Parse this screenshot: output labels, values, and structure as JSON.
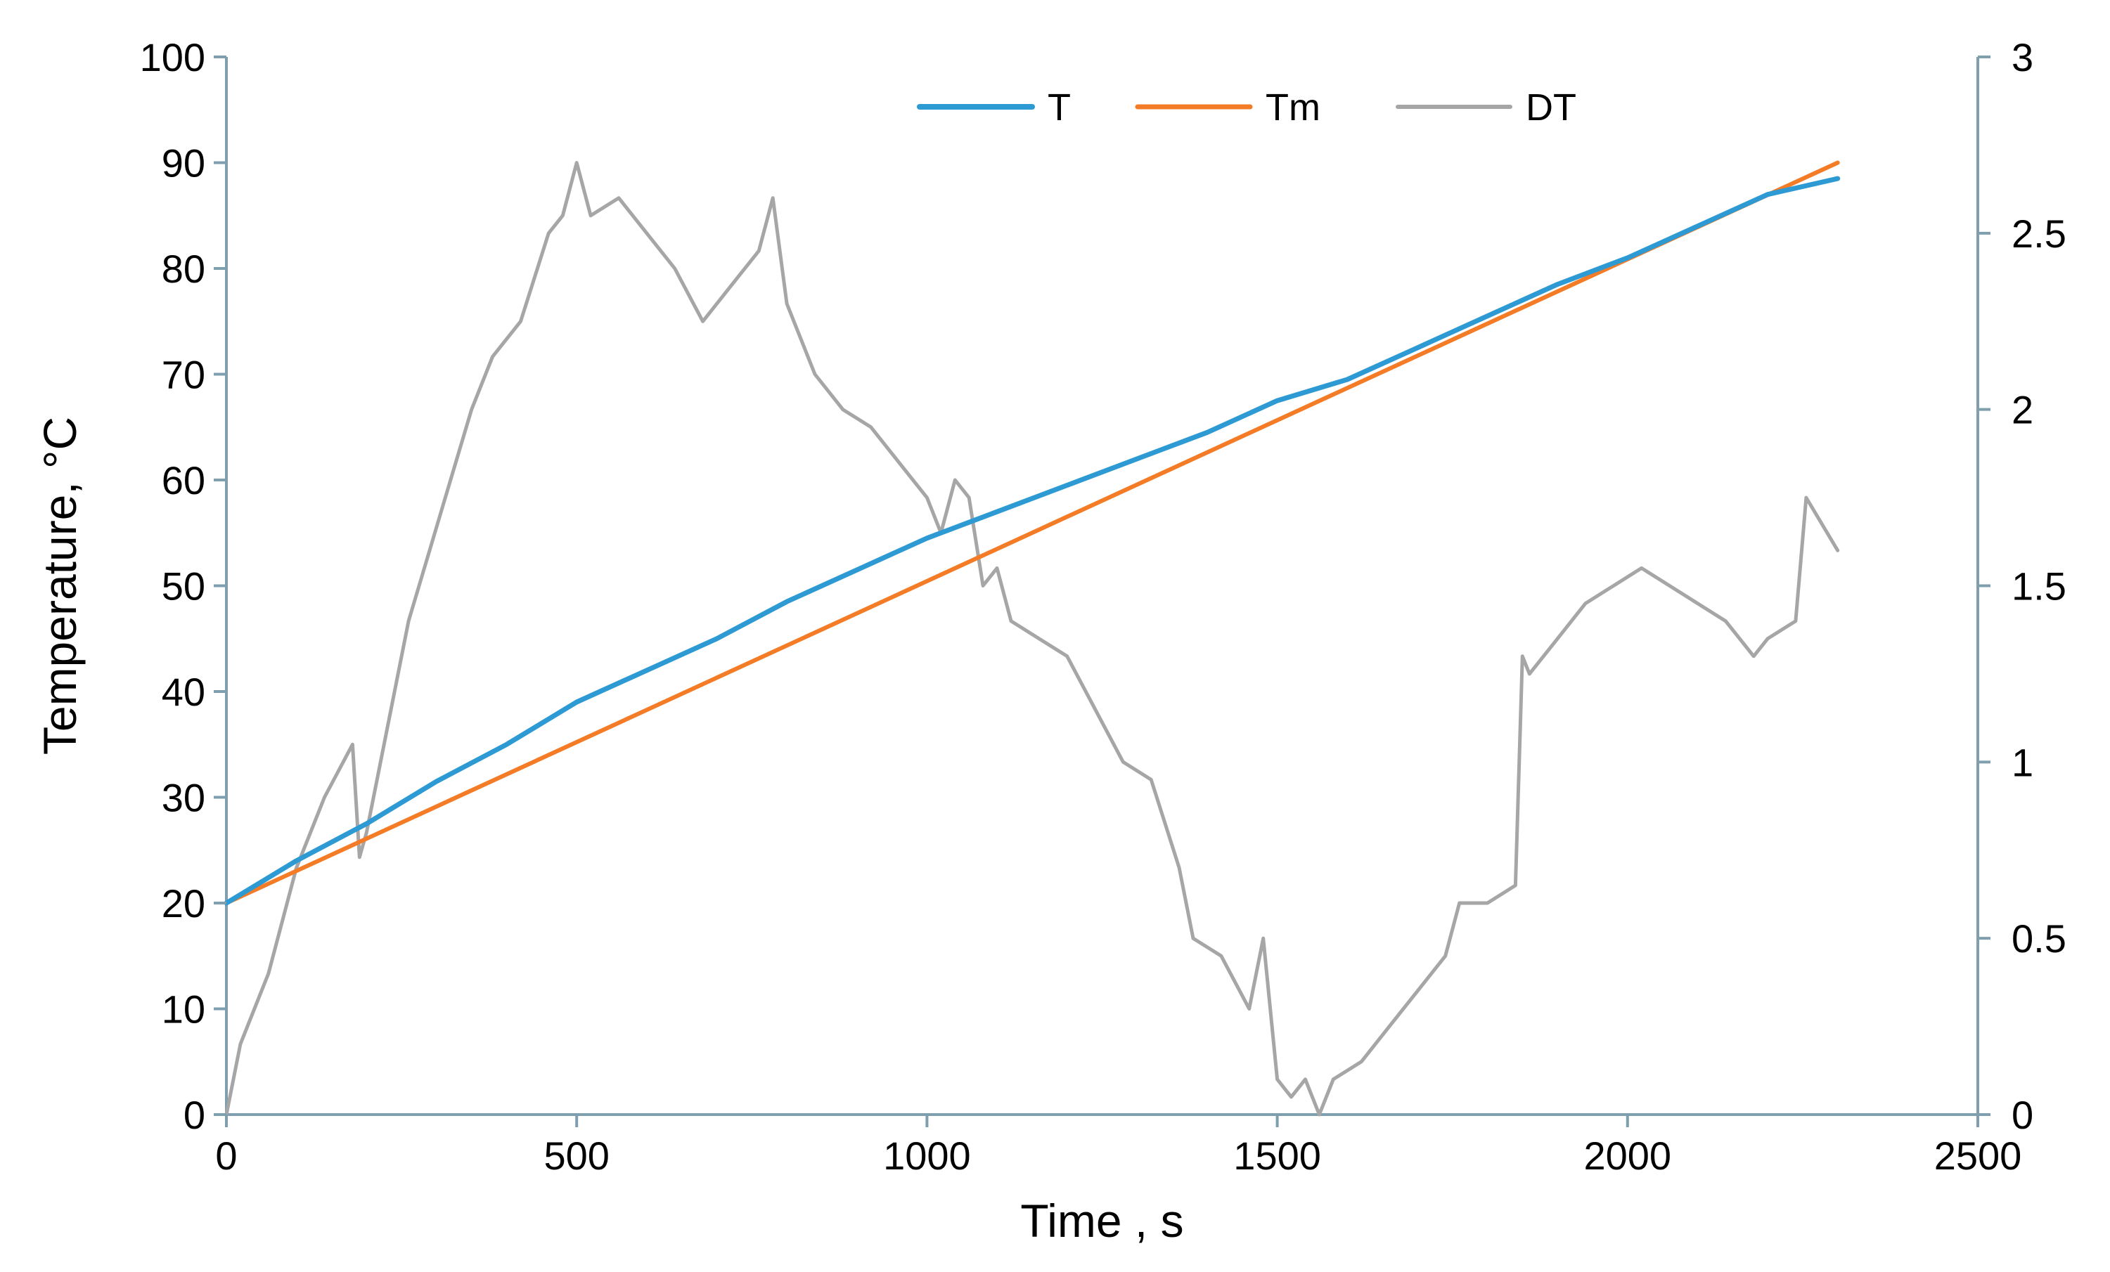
{
  "chart_data": {
    "type": "line",
    "xlabel": "Time , s",
    "ylabel": "Temperature, °C",
    "y2label": "",
    "xlim": [
      0,
      2500
    ],
    "ylim": [
      0,
      100
    ],
    "y2lim": [
      0,
      3
    ],
    "x_ticks": [
      "0",
      "500",
      "1000",
      "1500",
      "2000",
      "2500"
    ],
    "y_ticks": [
      "0",
      "10",
      "20",
      "30",
      "40",
      "50",
      "60",
      "70",
      "80",
      "90",
      "100"
    ],
    "y2_ticks": [
      "0",
      "0.5",
      "1",
      "1.5",
      "2",
      "2.5",
      "3"
    ],
    "grid": false,
    "legend_position": "top-center",
    "colors": {
      "T": "#2e9ad3",
      "Tm": "#f47c27",
      "DT": "#a6a6a6",
      "axis": "#7f9faf"
    },
    "series": [
      {
        "name": "T",
        "axis": "left",
        "x": [
          0,
          100,
          200,
          300,
          400,
          500,
          600,
          700,
          800,
          900,
          1000,
          1100,
          1200,
          1300,
          1400,
          1500,
          1600,
          1700,
          1800,
          1900,
          2000,
          2100,
          2200,
          2300
        ],
        "y": [
          20,
          24,
          27.5,
          31.5,
          35,
          39,
          42,
          45,
          48.5,
          51.5,
          54.5,
          57,
          59.5,
          62,
          64.5,
          67.5,
          69.5,
          72.5,
          75.5,
          78.5,
          81,
          84,
          87,
          88.5
        ]
      },
      {
        "name": "Tm",
        "axis": "left",
        "x": [
          0,
          2300
        ],
        "y": [
          20,
          90
        ]
      },
      {
        "name": "DT",
        "axis": "right",
        "x": [
          0,
          20,
          60,
          100,
          140,
          180,
          190,
          200,
          230,
          260,
          290,
          320,
          350,
          380,
          420,
          460,
          480,
          500,
          520,
          560,
          600,
          640,
          680,
          720,
          760,
          780,
          800,
          840,
          880,
          920,
          960,
          1000,
          1020,
          1040,
          1060,
          1080,
          1100,
          1120,
          1160,
          1200,
          1240,
          1280,
          1320,
          1360,
          1380,
          1420,
          1460,
          1480,
          1500,
          1520,
          1540,
          1560,
          1580,
          1620,
          1660,
          1700,
          1740,
          1760,
          1800,
          1840,
          1850,
          1860,
          1900,
          1940,
          1980,
          2020,
          2060,
          2100,
          2140,
          2180,
          2200,
          2240,
          2255,
          2300
        ],
        "y": [
          0,
          0.2,
          0.4,
          0.7,
          0.9,
          1.05,
          0.73,
          0.8,
          1.1,
          1.4,
          1.6,
          1.8,
          2.0,
          2.15,
          2.25,
          2.5,
          2.55,
          2.7,
          2.55,
          2.6,
          2.5,
          2.4,
          2.25,
          2.35,
          2.45,
          2.6,
          2.3,
          2.1,
          2.0,
          1.95,
          1.85,
          1.75,
          1.65,
          1.8,
          1.75,
          1.5,
          1.55,
          1.4,
          1.35,
          1.3,
          1.15,
          1.0,
          0.95,
          0.7,
          0.5,
          0.45,
          0.3,
          0.5,
          0.1,
          0.05,
          0.1,
          0.0,
          0.1,
          0.15,
          0.25,
          0.35,
          0.45,
          0.6,
          0.6,
          0.65,
          1.3,
          1.25,
          1.35,
          1.45,
          1.5,
          1.55,
          1.5,
          1.45,
          1.4,
          1.3,
          1.35,
          1.4,
          1.75,
          1.6
        ]
      }
    ]
  }
}
